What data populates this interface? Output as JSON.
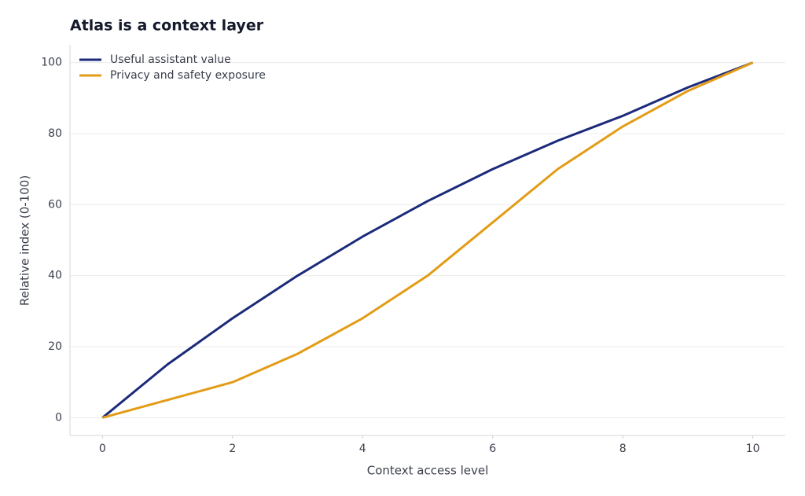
{
  "chart_data": {
    "type": "line",
    "title": "Atlas is a context layer",
    "x_label": "Context access level",
    "y_label": "Relative index (0-100)",
    "x": [
      0,
      1,
      2,
      3,
      4,
      5,
      6,
      7,
      8,
      9,
      10
    ],
    "series": [
      {
        "name": "Useful assistant value",
        "color": "#1b2a7a",
        "values": [
          0,
          15,
          28,
          40,
          51,
          61,
          70,
          78,
          85,
          93,
          100
        ]
      },
      {
        "name": "Privacy and safety exposure",
        "color": "#e39c16",
        "values": [
          0,
          5,
          10,
          18,
          28,
          40,
          55,
          70,
          82,
          92,
          100
        ]
      }
    ],
    "xlim": [
      -0.5,
      10.5
    ],
    "ylim": [
      -5,
      105
    ],
    "xticks": [
      0,
      2,
      4,
      6,
      8,
      10
    ],
    "yticks": [
      0,
      20,
      40,
      60,
      80,
      100
    ],
    "grid": true,
    "legend": "upper-left"
  }
}
